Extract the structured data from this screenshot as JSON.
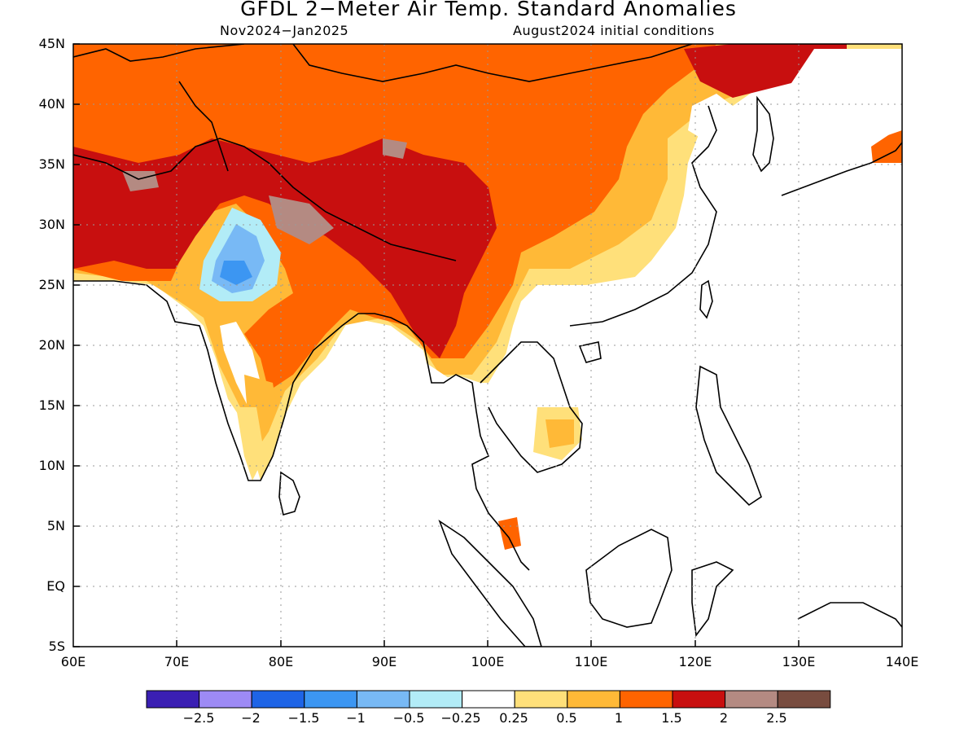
{
  "title": "GFDL 2−Meter Air Temp. Standard Anomalies",
  "subtitle_left": "Nov2024−Jan2025",
  "subtitle_right": "August2024 initial conditions",
  "map": {
    "lon_range": [
      60,
      140
    ],
    "lat_range": [
      -5,
      45
    ],
    "lat_ticks": [
      "45N",
      "40N",
      "35N",
      "30N",
      "25N",
      "20N",
      "15N",
      "10N",
      "5N",
      "EQ",
      "5S"
    ],
    "lon_ticks": [
      "60E",
      "70E",
      "80E",
      "90E",
      "100E",
      "110E",
      "120E",
      "130E",
      "140E"
    ],
    "grid": "dotted",
    "projection": "lat-lon"
  },
  "colorbar": {
    "colors": [
      "#3a1fb3",
      "#9d8af5",
      "#1e64e6",
      "#3c96f2",
      "#78b9f5",
      "#b2ecf7",
      "#ffffff",
      "#ffe07a",
      "#ffb937",
      "#ff6400",
      "#c80f0f",
      "#b48a82",
      "#784c3f"
    ],
    "labels": [
      "−2.5",
      "−2",
      "−1.5",
      "−1",
      "−0.5",
      "−0.25",
      "0.25",
      "0.5",
      "1",
      "1.5",
      "2",
      "2.5"
    ]
  }
}
